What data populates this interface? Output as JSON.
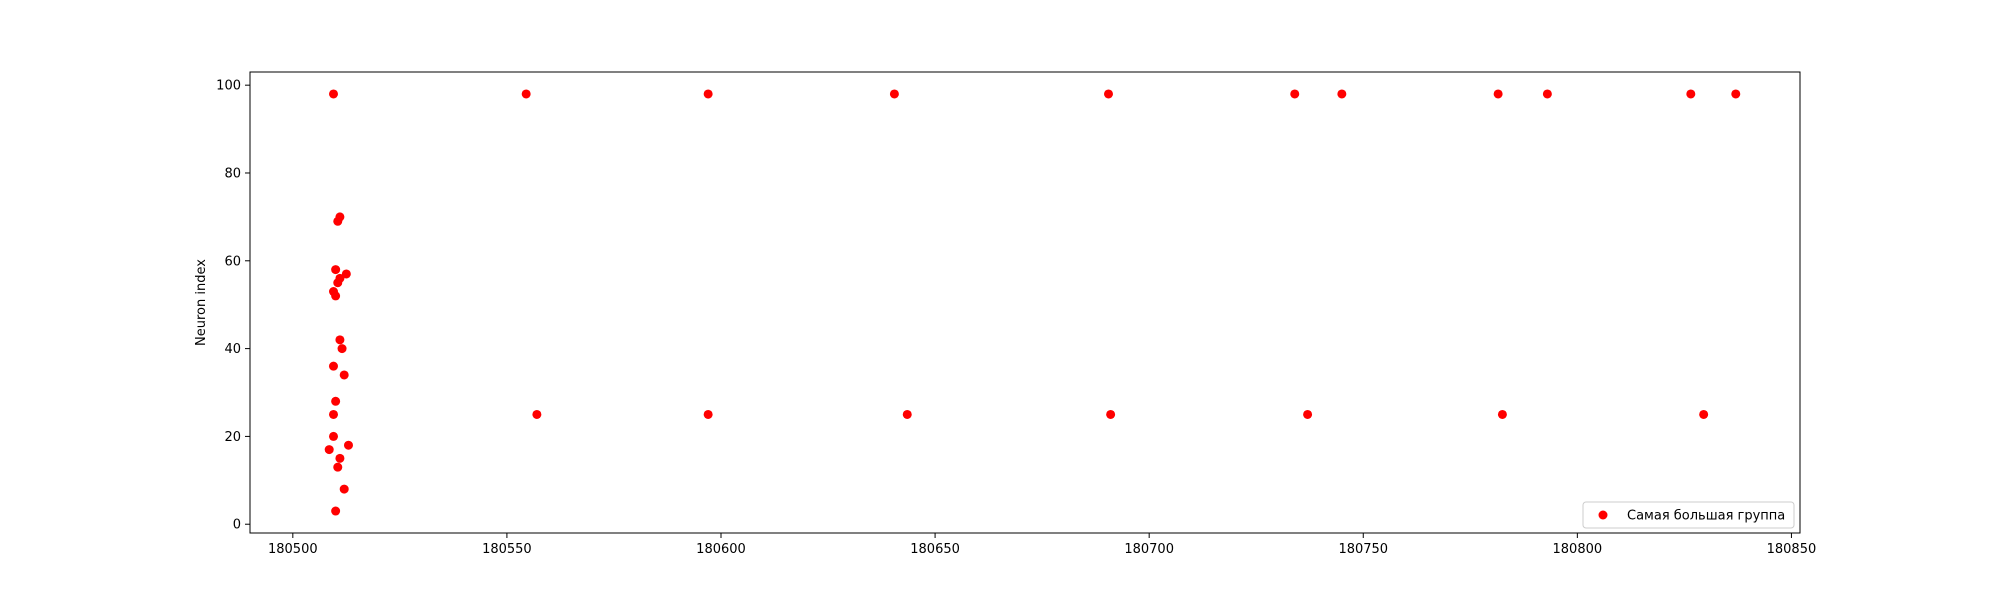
{
  "chart_data": {
    "type": "scatter",
    "title": "",
    "xlabel": "",
    "ylabel": "Neuron index",
    "xlim": [
      180490,
      180852
    ],
    "ylim": [
      -2,
      103
    ],
    "xticks": [
      180500,
      180550,
      180600,
      180650,
      180700,
      180750,
      180800,
      180850
    ],
    "yticks": [
      0,
      20,
      40,
      60,
      80,
      100
    ],
    "grid": false,
    "legend_position": "lower right",
    "series": [
      {
        "name": "Самая большая группа",
        "color": "#ff0000",
        "marker": "circle",
        "points": [
          [
            180509.5,
            98
          ],
          [
            180554.5,
            98
          ],
          [
            180597,
            98
          ],
          [
            180640.5,
            98
          ],
          [
            180690.5,
            98
          ],
          [
            180734,
            98
          ],
          [
            180745,
            98
          ],
          [
            180781.5,
            98
          ],
          [
            180793,
            98
          ],
          [
            180826.5,
            98
          ],
          [
            180837,
            98
          ],
          [
            180511,
            70
          ],
          [
            180510.5,
            69
          ],
          [
            180510,
            58
          ],
          [
            180512.5,
            57
          ],
          [
            180511,
            56
          ],
          [
            180510.5,
            55
          ],
          [
            180509.5,
            53
          ],
          [
            180510,
            52
          ],
          [
            180511,
            42
          ],
          [
            180511.5,
            40
          ],
          [
            180509.5,
            36
          ],
          [
            180512,
            34
          ],
          [
            180510,
            28
          ],
          [
            180509.5,
            25
          ],
          [
            180509.5,
            20
          ],
          [
            180513,
            18
          ],
          [
            180508.5,
            17
          ],
          [
            180511,
            15
          ],
          [
            180510.5,
            13
          ],
          [
            180512,
            8
          ],
          [
            180510,
            3
          ],
          [
            180557,
            25
          ],
          [
            180597,
            25
          ],
          [
            180643.5,
            25
          ],
          [
            180691,
            25
          ],
          [
            180737,
            25
          ],
          [
            180782.5,
            25
          ],
          [
            180829.5,
            25
          ]
        ]
      }
    ]
  }
}
